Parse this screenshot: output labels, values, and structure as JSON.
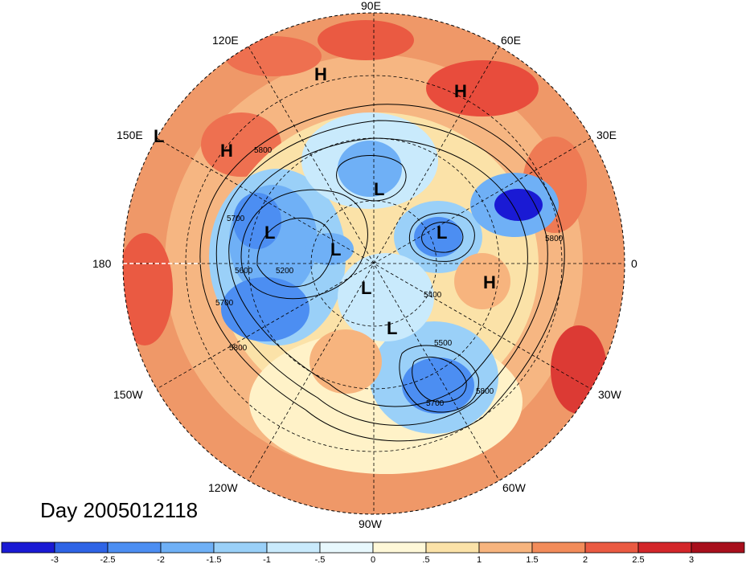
{
  "map": {
    "day_label": "Day 2005012118",
    "longitude_labels": {
      "e90": "90E",
      "e120": "120E",
      "e60": "60E",
      "e150": "150E",
      "e30": "30E",
      "d180": "180",
      "d0": "0",
      "w150": "150W",
      "w30": "30W",
      "w120": "120W",
      "w60": "60W",
      "w90": "90W"
    },
    "pressure_systems": [
      {
        "type": "H"
      },
      {
        "type": "H"
      },
      {
        "type": "H"
      },
      {
        "type": "H"
      },
      {
        "type": "L"
      },
      {
        "type": "L"
      },
      {
        "type": "L"
      },
      {
        "type": "L"
      },
      {
        "type": "L"
      },
      {
        "type": "L"
      },
      {
        "type": "L"
      }
    ],
    "contour_labels": [
      "5800",
      "5700",
      "5600",
      "5200",
      "5700",
      "5800",
      "5400",
      "5500",
      "5700",
      "5800",
      "5800"
    ]
  },
  "colorbar": {
    "labels": [
      "-3",
      "-2.5",
      "-2",
      "-1.5",
      "-1",
      "-.5",
      "0",
      ".5",
      "1",
      "1.5",
      "2",
      "2.5",
      "3"
    ],
    "colors": [
      "#1a1ad4",
      "#2e64e6",
      "#4c8ef2",
      "#6fb0f6",
      "#9ad0f8",
      "#c9eafc",
      "#e8f8fd",
      "#fff8d8",
      "#fbe2a8",
      "#f7b47e",
      "#f28c5a",
      "#ea5a42",
      "#d3262a",
      "#a80f1c"
    ]
  }
}
